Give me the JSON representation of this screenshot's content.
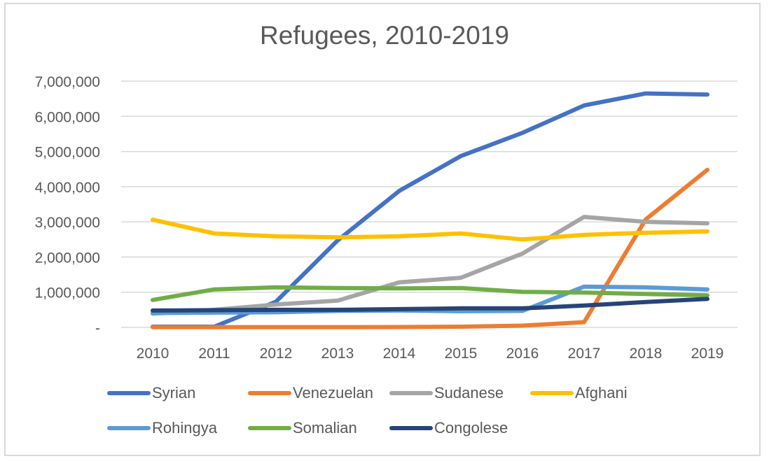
{
  "chart_data": {
    "type": "line",
    "title": "Refugees, 2010-2019",
    "xlabel": "",
    "ylabel": "",
    "x": [
      "2010",
      "2011",
      "2012",
      "2013",
      "2014",
      "2015",
      "2016",
      "2017",
      "2018",
      "2019"
    ],
    "ylim": [
      0,
      7000000
    ],
    "yticks": [
      0,
      1000000,
      2000000,
      3000000,
      4000000,
      5000000,
      6000000,
      7000000
    ],
    "ytick_labels": [
      "-",
      "1,000,000",
      "2,000,000",
      "3,000,000",
      "4,000,000",
      "5,000,000",
      "6,000,000",
      "7,000,000"
    ],
    "grid": true,
    "legend_position": "bottom",
    "series": [
      {
        "name": "Syrian",
        "color": "#4472c4",
        "values": [
          20000,
          20000,
          730000,
          2470000,
          3880000,
          4870000,
          5530000,
          6310000,
          6650000,
          6620000
        ]
      },
      {
        "name": "Venezuelan",
        "color": "#ed7d31",
        "values": [
          7000,
          7000,
          7000,
          8000,
          10000,
          20000,
          50000,
          150000,
          3070000,
          4480000
        ]
      },
      {
        "name": "Sudanese",
        "color": "#a5a5a5",
        "values": [
          390000,
          500000,
          650000,
          760000,
          1280000,
          1410000,
          2100000,
          3140000,
          3000000,
          2960000
        ]
      },
      {
        "name": "Afghani",
        "color": "#ffc000",
        "values": [
          3060000,
          2670000,
          2590000,
          2560000,
          2590000,
          2670000,
          2500000,
          2630000,
          2690000,
          2730000
        ]
      },
      {
        "name": "Rohingya",
        "color": "#5b9bd5",
        "values": [
          410000,
          420000,
          430000,
          470000,
          480000,
          460000,
          470000,
          1160000,
          1140000,
          1080000
        ]
      },
      {
        "name": "Somalian",
        "color": "#70ad47",
        "values": [
          780000,
          1080000,
          1140000,
          1120000,
          1110000,
          1120000,
          1010000,
          990000,
          950000,
          910000
        ]
      },
      {
        "name": "Congolese",
        "color": "#264478",
        "values": [
          480000,
          490000,
          500000,
          500000,
          520000,
          540000,
          540000,
          620000,
          720000,
          810000
        ]
      }
    ]
  }
}
